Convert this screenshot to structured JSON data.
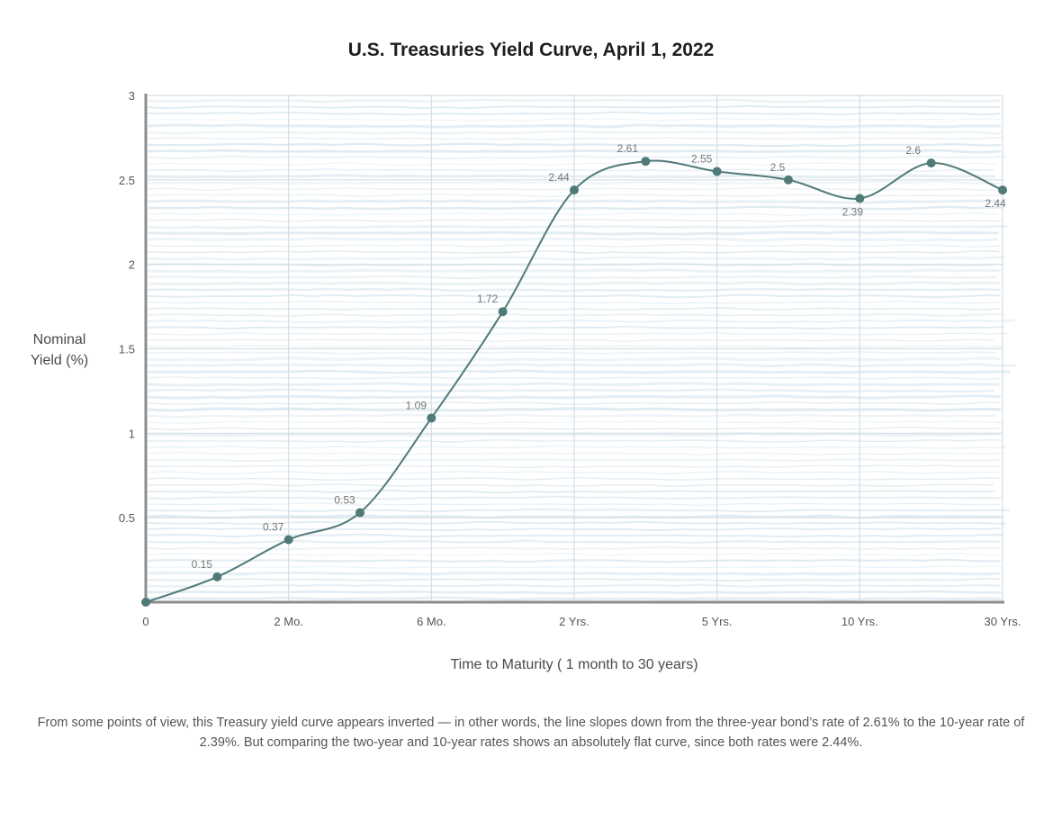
{
  "chart_data": {
    "type": "line",
    "title": "U.S. Treasuries Yield Curve, April 1, 2022",
    "xlabel": "Time to Maturity ( 1 month to 30 years)",
    "ylabel": [
      "Nominal",
      "Yield (%)"
    ],
    "ylim": [
      0,
      3
    ],
    "yticks": [
      "0.5",
      "1",
      "1.5",
      "2",
      "2.5",
      "3"
    ],
    "xticks": [
      "0",
      "2 Mo.",
      "6 Mo.",
      "2 Yrs.",
      "5 Yrs.",
      "10 Yrs.",
      "30 Yrs."
    ],
    "grid": true,
    "points": [
      {
        "x": 0,
        "y": 0,
        "label": ""
      },
      {
        "x": 1,
        "y": 0.15,
        "label": "0.15"
      },
      {
        "x": 2,
        "y": 0.37,
        "label": "0.37"
      },
      {
        "x": 3,
        "y": 0.53,
        "label": "0.53"
      },
      {
        "x": 4,
        "y": 1.09,
        "label": "1.09"
      },
      {
        "x": 5,
        "y": 1.72,
        "label": "1.72"
      },
      {
        "x": 6,
        "y": 2.44,
        "label": "2.44"
      },
      {
        "x": 7,
        "y": 2.61,
        "label": "2.61"
      },
      {
        "x": 8,
        "y": 2.55,
        "label": "2.55"
      },
      {
        "x": 9,
        "y": 2.5,
        "label": "2.5"
      },
      {
        "x": 10,
        "y": 2.39,
        "label": "2.39"
      },
      {
        "x": 11,
        "y": 2.6,
        "label": "2.6"
      },
      {
        "x": 12,
        "y": 2.44,
        "label": "2.44"
      }
    ],
    "colors": {
      "line": "#4f7a78",
      "marker": "#4f7a78",
      "axis": "#8c8c8c",
      "grid": "#d6dde2",
      "texture": "#dbe8f0"
    }
  },
  "caption": "From some points of view, this Treasury yield curve appears inverted — in other words, the line slopes down from the three-year bond’s rate of 2.61% to the 10-year rate of 2.39%. But comparing the two-year and 10-year rates shows an absolutely flat curve, since both rates were 2.44%."
}
